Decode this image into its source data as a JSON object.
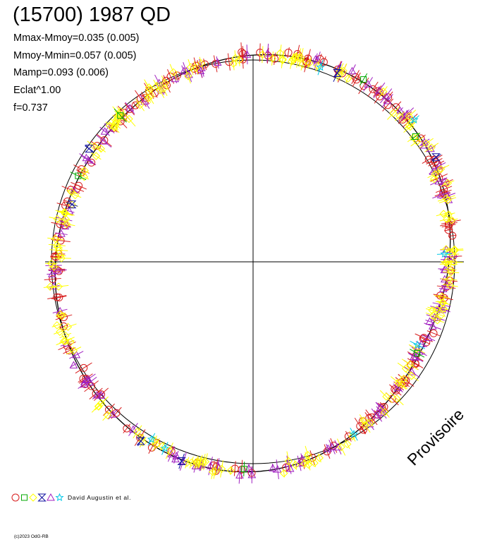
{
  "title": "(15700) 1987 QD",
  "stats": {
    "line1": "Mmax-Mmoy=0.035 (0.005)",
    "line2": "Mmoy-Mmin=0.057 (0.005)",
    "line3": "Mamp=0.093 (0.006)",
    "line4": "Eclat^1.00",
    "line5": "f=0.737"
  },
  "watermark": "Provisoire",
  "legend": {
    "markers": [
      {
        "shape": "circle",
        "color": "#d81e1e"
      },
      {
        "shape": "square",
        "color": "#00a800"
      },
      {
        "shape": "diamond",
        "color": "#ffff00"
      },
      {
        "shape": "hourglass",
        "color": "#1010a0"
      },
      {
        "shape": "triangle",
        "color": "#a020c0"
      },
      {
        "shape": "star",
        "color": "#00c8e8"
      }
    ],
    "author": "David Augustin et al."
  },
  "copyright": "(c)2023 OdG-RB",
  "chart_data": {
    "type": "polar-lightcurve",
    "reference_circle_radius": 1.0,
    "fit_curve": {
      "harmonics": [
        {
          "n": 1,
          "a": 0.0,
          "b": 0.0
        },
        {
          "n": 2,
          "a": 0.028,
          "b": 0.035
        },
        {
          "n": 3,
          "a": -0.008,
          "b": 0.004
        },
        {
          "n": 4,
          "a": 0.004,
          "b": -0.003
        }
      ]
    },
    "series": [
      {
        "marker": "circle",
        "color": "#d81e1e",
        "n": 150,
        "noise": 0.02,
        "seed": 11
      },
      {
        "marker": "triangle",
        "color": "#a020c0",
        "n": 110,
        "noise": 0.022,
        "seed": 23
      },
      {
        "marker": "diamond",
        "color": "#ffff00",
        "n": 170,
        "noise": 0.03,
        "seed": 37
      },
      {
        "marker": "hourglass",
        "color": "#1010a0",
        "n": 6,
        "noise": 0.03,
        "seed": 41
      },
      {
        "marker": "star",
        "color": "#00c8e8",
        "n": 7,
        "noise": 0.03,
        "seed": 53
      },
      {
        "marker": "square",
        "color": "#00a800",
        "n": 6,
        "noise": 0.03,
        "seed": 67
      }
    ]
  }
}
